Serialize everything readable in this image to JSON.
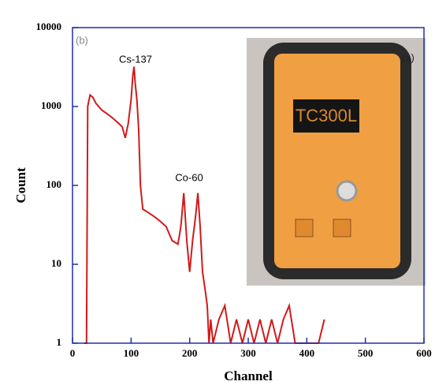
{
  "chart_data": {
    "type": "line",
    "x_label": "Channel",
    "y_label": "Count",
    "annotations": {
      "panel": "(b)",
      "peak_1": "Cs-137",
      "peak_2": "Co-60",
      "inset_panel": "(a)",
      "inset_display": "TC300L"
    },
    "color": "#d11a1a",
    "x": [
      20,
      24,
      26,
      30,
      35,
      40,
      50,
      60,
      70,
      80,
      85,
      90,
      95,
      100,
      103,
      105,
      107,
      110,
      113,
      116,
      120,
      130,
      140,
      150,
      160,
      170,
      180,
      185,
      190,
      195,
      200,
      205,
      210,
      214,
      218,
      222,
      226,
      230,
      233,
      236,
      240,
      250,
      260,
      270,
      280,
      290,
      300,
      310,
      320,
      330,
      340,
      350,
      360,
      370,
      380,
      390,
      400,
      420,
      430
    ],
    "values": [
      1,
      1,
      1000,
      1400,
      1300,
      1100,
      900,
      800,
      700,
      600,
      550,
      400,
      600,
      1200,
      2500,
      3200,
      2000,
      1200,
      500,
      100,
      50,
      45,
      40,
      35,
      30,
      20,
      18,
      30,
      80,
      20,
      8,
      20,
      40,
      80,
      30,
      8,
      5,
      3,
      1,
      2,
      1,
      2,
      3,
      1,
      2,
      1,
      2,
      1,
      2,
      1,
      2,
      1,
      2,
      3,
      1,
      1,
      1,
      1,
      2
    ],
    "xlim": [
      0,
      600
    ],
    "xticks": [
      0,
      100,
      200,
      300,
      400,
      500,
      600
    ],
    "ylim": [
      1,
      10000
    ],
    "yticks": [
      1,
      10,
      100,
      1000,
      10000
    ],
    "yscale": "log",
    "axis_color": "#1f2fa8"
  }
}
